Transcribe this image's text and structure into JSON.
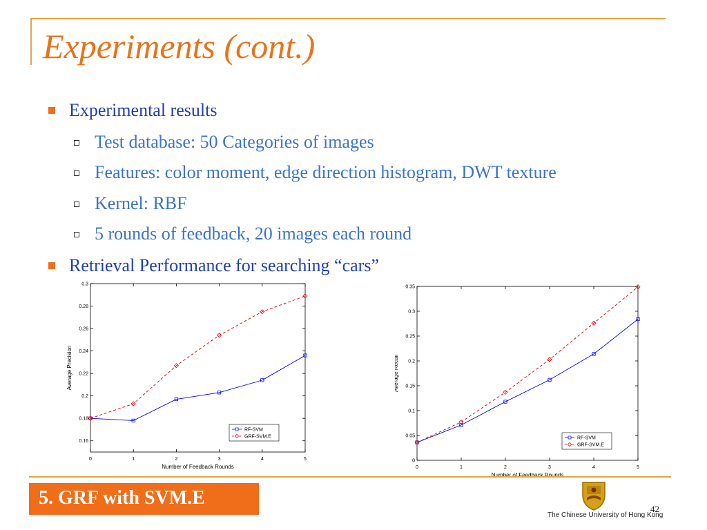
{
  "slide": {
    "title": "Experiments (cont.)",
    "bullets": [
      {
        "text": "Experimental results",
        "level": 1
      },
      {
        "text": "Test database: 50 Categories of images",
        "level": 2
      },
      {
        "text": "Features: color moment, edge direction histogram, DWT texture",
        "level": 2
      },
      {
        "text": "Kernel: RBF",
        "level": 2
      },
      {
        "text": "5 rounds of feedback, 20 images each round",
        "level": 2
      },
      {
        "text": "Retrieval Performance for searching “cars”",
        "level": 1
      }
    ],
    "footer_label": "5. GRF with SVM.E",
    "university": "The Chinese University of Hong Kong",
    "page_number": "42"
  },
  "colors": {
    "accent": "#f06d1a",
    "frame": "#e8a33d",
    "title": "#e8731a",
    "bullet_text": "#1f3fb0",
    "sub_text": "#3a74c8",
    "series_rf_svm": "#0000ff",
    "series_grf_svm_e": "#e00000"
  },
  "chart_data": [
    {
      "type": "line",
      "xlabel": "Number of Feedback Rounds",
      "ylabel": "Average Precision",
      "x": [
        0,
        1,
        2,
        3,
        4,
        5
      ],
      "xlim": [
        0,
        5
      ],
      "ylim": [
        0.15,
        0.3
      ],
      "xticks": [
        "0",
        "1",
        "2",
        "3",
        "4",
        "5"
      ],
      "yticks": [
        "0.16",
        "0.18",
        "0.2",
        "0.22",
        "0.24",
        "0.26",
        "0.28",
        "0.3"
      ],
      "legend_position": "bottom-right",
      "series": [
        {
          "name": "RF-SVM",
          "marker": "square",
          "style": "solid",
          "values": [
            0.18,
            0.178,
            0.197,
            0.203,
            0.214,
            0.236
          ]
        },
        {
          "name": "GRF-SVM.E",
          "marker": "diamond",
          "style": "dashed",
          "values": [
            0.18,
            0.193,
            0.227,
            0.254,
            0.275,
            0.289
          ]
        }
      ]
    },
    {
      "type": "line",
      "xlabel": "Number of Feedback Rounds",
      "ylabel": "Average Recall",
      "x": [
        0,
        1,
        2,
        3,
        4,
        5
      ],
      "xlim": [
        0,
        5
      ],
      "ylim": [
        0,
        0.35
      ],
      "xticks": [
        "0",
        "1",
        "2",
        "3",
        "4",
        "5"
      ],
      "yticks": [
        "0",
        "0.05",
        "0.1",
        "0.15",
        "0.2",
        "0.25",
        "0.3",
        "0.35"
      ],
      "legend_position": "bottom-right",
      "series": [
        {
          "name": "RF-SVM",
          "marker": "square",
          "style": "solid",
          "values": [
            0.036,
            0.071,
            0.118,
            0.162,
            0.214,
            0.284
          ]
        },
        {
          "name": "GRF-SVM.E",
          "marker": "diamond",
          "style": "dashed",
          "values": [
            0.036,
            0.077,
            0.137,
            0.203,
            0.276,
            0.349
          ]
        }
      ]
    }
  ]
}
